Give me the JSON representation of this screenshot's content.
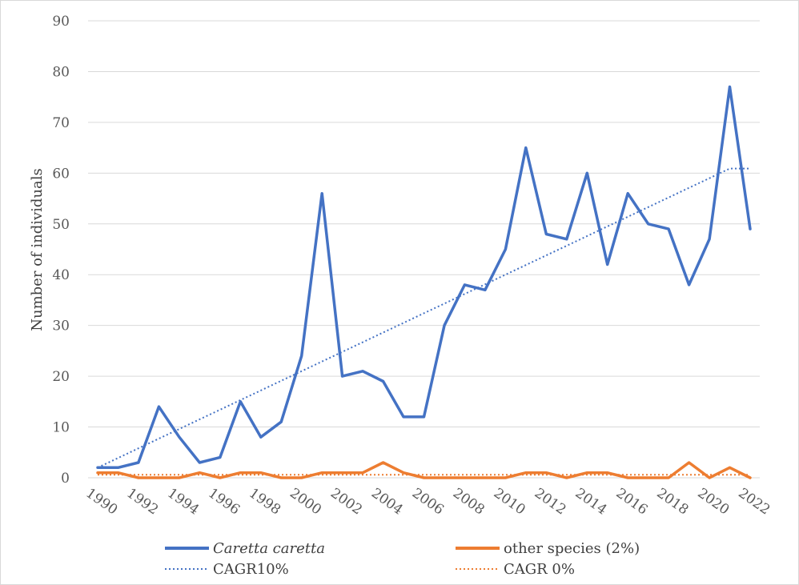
{
  "chart_data": {
    "type": "line",
    "title": "",
    "xlabel": "",
    "ylabel": "Number of individuals",
    "ylim": [
      0,
      90
    ],
    "ytick_step": 10,
    "grid": true,
    "x": [
      1990,
      1991,
      1992,
      1993,
      1994,
      1995,
      1996,
      1997,
      1998,
      1999,
      2000,
      2001,
      2002,
      2003,
      2004,
      2005,
      2006,
      2007,
      2008,
      2009,
      2010,
      2011,
      2012,
      2013,
      2014,
      2015,
      2016,
      2017,
      2018,
      2019,
      2020,
      2021,
      2022
    ],
    "x_tick_labels": [
      "1990",
      "1992",
      "1994",
      "1996",
      "1998",
      "2000",
      "2002",
      "2004",
      "2006",
      "2008",
      "2010",
      "2012",
      "2014",
      "2016",
      "2018",
      "2020",
      "2022"
    ],
    "legend_position": "bottom",
    "series": [
      {
        "name": "Caretta caretta",
        "italic": true,
        "color": "#4472c4",
        "style": "solid",
        "values": [
          2,
          2,
          3,
          14,
          8,
          3,
          4,
          15,
          8,
          11,
          24,
          56,
          20,
          21,
          19,
          12,
          12,
          30,
          38,
          37,
          45,
          65,
          48,
          47,
          60,
          42,
          56,
          50,
          49,
          38,
          47,
          77,
          49
        ]
      },
      {
        "name": "other species (2%)",
        "italic": false,
        "color": "#ed7d31",
        "style": "solid",
        "values": [
          1,
          1,
          0,
          0,
          0,
          1,
          0,
          1,
          1,
          0,
          0,
          1,
          1,
          1,
          3,
          1,
          0,
          0,
          0,
          0,
          0,
          1,
          1,
          0,
          1,
          1,
          0,
          0,
          0,
          3,
          0,
          2,
          0
        ]
      },
      {
        "name": "CAGR10%",
        "italic": false,
        "color": "#4472c4",
        "style": "dotted",
        "values": [
          2,
          3.9,
          5.8,
          7.7,
          9.6,
          11.5,
          13.4,
          15.3,
          17.2,
          19.1,
          21,
          22.9,
          24.8,
          26.7,
          28.6,
          30.5,
          32.4,
          34.3,
          36.2,
          38.1,
          40,
          41.9,
          43.8,
          45.7,
          47.6,
          49.5,
          51.4,
          53.3,
          55.2,
          57.1,
          59,
          60.9,
          60.9
        ]
      },
      {
        "name": "CAGR 0%",
        "italic": false,
        "color": "#ed7d31",
        "style": "dotted",
        "values": [
          0.6,
          0.6,
          0.6,
          0.6,
          0.6,
          0.6,
          0.6,
          0.6,
          0.6,
          0.6,
          0.6,
          0.6,
          0.6,
          0.6,
          0.6,
          0.6,
          0.6,
          0.6,
          0.6,
          0.6,
          0.6,
          0.6,
          0.6,
          0.6,
          0.6,
          0.6,
          0.6,
          0.6,
          0.6,
          0.6,
          0.6,
          0.6,
          0.6
        ]
      }
    ]
  }
}
